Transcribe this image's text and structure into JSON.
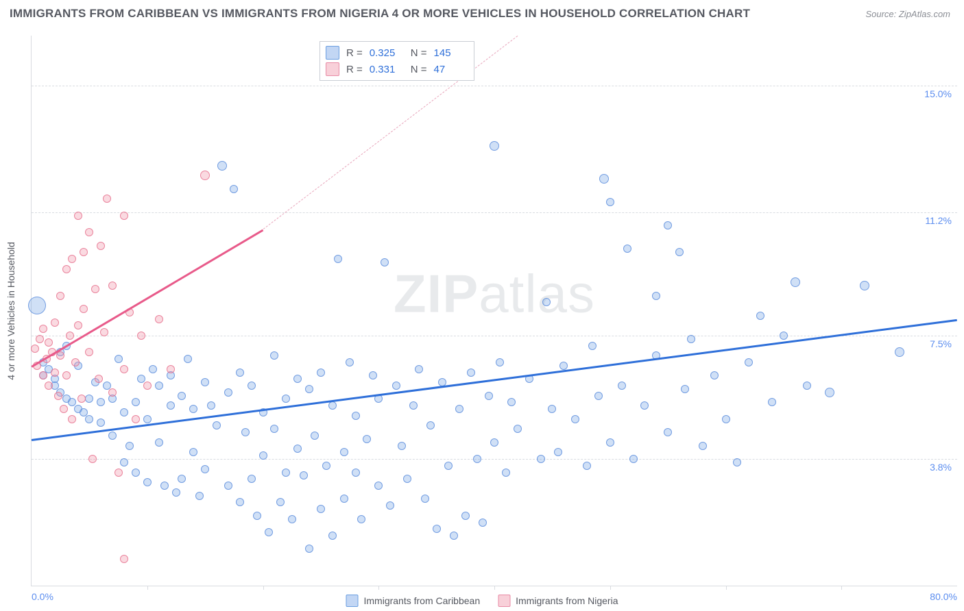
{
  "title": "IMMIGRANTS FROM CARIBBEAN VS IMMIGRANTS FROM NIGERIA 4 OR MORE VEHICLES IN HOUSEHOLD CORRELATION CHART",
  "source": "Source: ZipAtlas.com",
  "watermark": "ZIPatlas",
  "chart": {
    "type": "scatter",
    "background_color": "#ffffff",
    "grid_color": "#d8dbe0",
    "x_min": 0,
    "x_max": 80,
    "y_min": 0,
    "y_max": 16.5,
    "x_start_label": "0.0%",
    "x_end_label": "80.0%",
    "y_axis_label": "4 or more Vehicles in Household",
    "y_ticks": [
      {
        "v": 3.8,
        "label": "3.8%"
      },
      {
        "v": 7.5,
        "label": "7.5%"
      },
      {
        "v": 11.2,
        "label": "11.2%"
      },
      {
        "v": 15.0,
        "label": "15.0%"
      }
    ],
    "x_tick_positions": [
      0.125,
      0.25,
      0.375,
      0.5,
      0.625,
      0.75,
      0.875
    ],
    "series": [
      {
        "name": "Immigrants from Caribbean",
        "color_fill": "rgba(120,165,230,0.35)",
        "color_stroke": "#6a9de0",
        "marker_size_base": 14,
        "stats": {
          "R": "0.325",
          "N": "145"
        },
        "trend": {
          "x1": 0,
          "y1": 4.4,
          "x2": 80,
          "y2": 8.0,
          "color": "#2e6fd9"
        },
        "points": [
          [
            0.5,
            8.4,
            26
          ],
          [
            1,
            6.7,
            12
          ],
          [
            1,
            6.3,
            12
          ],
          [
            1.5,
            6.5,
            12
          ],
          [
            2,
            6.2,
            12
          ],
          [
            2,
            6.0,
            12
          ],
          [
            2.5,
            5.8,
            12
          ],
          [
            2.5,
            7.0,
            12
          ],
          [
            3,
            5.6,
            12
          ],
          [
            3,
            7.2,
            12
          ],
          [
            3.5,
            5.5,
            12
          ],
          [
            4,
            5.3,
            12
          ],
          [
            4,
            6.6,
            12
          ],
          [
            4.5,
            5.2,
            12
          ],
          [
            5,
            5.0,
            12
          ],
          [
            5,
            5.6,
            12
          ],
          [
            5.5,
            6.1,
            12
          ],
          [
            6,
            5.5,
            12
          ],
          [
            6,
            4.9,
            12
          ],
          [
            6.5,
            6.0,
            12
          ],
          [
            7,
            5.6,
            12
          ],
          [
            7,
            4.5,
            12
          ],
          [
            7.5,
            6.8,
            12
          ],
          [
            8,
            5.2,
            12
          ],
          [
            8,
            3.7,
            12
          ],
          [
            8.5,
            4.2,
            12
          ],
          [
            9,
            5.5,
            12
          ],
          [
            9,
            3.4,
            12
          ],
          [
            9.5,
            6.2,
            12
          ],
          [
            10,
            5.0,
            12
          ],
          [
            10,
            3.1,
            12
          ],
          [
            10.5,
            6.5,
            12
          ],
          [
            11,
            6.0,
            12
          ],
          [
            11,
            4.3,
            12
          ],
          [
            11.5,
            3.0,
            12
          ],
          [
            12,
            5.4,
            12
          ],
          [
            12,
            6.3,
            12
          ],
          [
            12.5,
            2.8,
            12
          ],
          [
            13,
            5.7,
            12
          ],
          [
            13,
            3.2,
            12
          ],
          [
            13.5,
            6.8,
            12
          ],
          [
            14,
            4.0,
            12
          ],
          [
            14,
            5.3,
            12
          ],
          [
            14.5,
            2.7,
            12
          ],
          [
            15,
            6.1,
            12
          ],
          [
            15,
            3.5,
            12
          ],
          [
            15.5,
            5.4,
            12
          ],
          [
            16,
            4.8,
            12
          ],
          [
            16.5,
            12.6,
            14
          ],
          [
            17,
            5.8,
            12
          ],
          [
            17,
            3.0,
            12
          ],
          [
            17.5,
            11.9,
            12
          ],
          [
            18,
            2.5,
            12
          ],
          [
            18,
            6.4,
            12
          ],
          [
            18.5,
            4.6,
            12
          ],
          [
            19,
            3.2,
            12
          ],
          [
            19,
            6.0,
            12
          ],
          [
            19.5,
            2.1,
            12
          ],
          [
            20,
            5.2,
            12
          ],
          [
            20,
            3.9,
            12
          ],
          [
            20.5,
            1.6,
            12
          ],
          [
            21,
            4.7,
            12
          ],
          [
            21,
            6.9,
            12
          ],
          [
            21.5,
            2.5,
            12
          ],
          [
            22,
            5.6,
            12
          ],
          [
            22,
            3.4,
            12
          ],
          [
            22.5,
            2.0,
            12
          ],
          [
            23,
            6.2,
            12
          ],
          [
            23,
            4.1,
            12
          ],
          [
            23.5,
            3.3,
            12
          ],
          [
            24,
            1.1,
            12
          ],
          [
            24,
            5.9,
            12
          ],
          [
            24.5,
            4.5,
            12
          ],
          [
            25,
            2.3,
            12
          ],
          [
            25,
            6.4,
            12
          ],
          [
            25.5,
            3.6,
            12
          ],
          [
            26,
            1.5,
            12
          ],
          [
            26,
            5.4,
            12
          ],
          [
            26.5,
            9.8,
            12
          ],
          [
            27,
            4.0,
            12
          ],
          [
            27,
            2.6,
            12
          ],
          [
            27.5,
            6.7,
            12
          ],
          [
            28,
            3.4,
            12
          ],
          [
            28,
            5.1,
            12
          ],
          [
            28.5,
            2.0,
            12
          ],
          [
            29,
            4.4,
            12
          ],
          [
            29.5,
            6.3,
            12
          ],
          [
            30,
            3.0,
            12
          ],
          [
            30,
            5.6,
            12
          ],
          [
            30.5,
            9.7,
            12
          ],
          [
            31,
            2.4,
            12
          ],
          [
            31.5,
            6.0,
            12
          ],
          [
            32,
            4.2,
            12
          ],
          [
            32.5,
            3.2,
            12
          ],
          [
            33,
            5.4,
            12
          ],
          [
            33.5,
            6.5,
            12
          ],
          [
            34,
            2.6,
            12
          ],
          [
            34.5,
            4.8,
            12
          ],
          [
            35,
            1.7,
            12
          ],
          [
            35.5,
            6.1,
            12
          ],
          [
            36,
            3.6,
            12
          ],
          [
            36.5,
            1.5,
            12
          ],
          [
            37,
            5.3,
            12
          ],
          [
            37.5,
            2.1,
            12
          ],
          [
            38,
            6.4,
            12
          ],
          [
            38.5,
            3.8,
            12
          ],
          [
            39,
            1.9,
            12
          ],
          [
            39.5,
            5.7,
            12
          ],
          [
            40,
            4.3,
            12
          ],
          [
            40,
            13.2,
            14
          ],
          [
            40.5,
            6.7,
            12
          ],
          [
            41,
            3.4,
            12
          ],
          [
            41.5,
            5.5,
            12
          ],
          [
            42,
            4.7,
            12
          ],
          [
            43,
            6.2,
            12
          ],
          [
            44,
            3.8,
            12
          ],
          [
            44.5,
            8.5,
            12
          ],
          [
            45,
            5.3,
            12
          ],
          [
            45.5,
            4.0,
            12
          ],
          [
            46,
            6.6,
            12
          ],
          [
            47,
            5.0,
            12
          ],
          [
            48,
            3.6,
            12
          ],
          [
            48.5,
            7.2,
            12
          ],
          [
            49,
            5.7,
            12
          ],
          [
            49.5,
            12.2,
            14
          ],
          [
            50,
            4.3,
            12
          ],
          [
            50,
            11.5,
            12
          ],
          [
            51,
            6.0,
            12
          ],
          [
            51.5,
            10.1,
            12
          ],
          [
            52,
            3.8,
            12
          ],
          [
            53,
            5.4,
            12
          ],
          [
            54,
            6.9,
            12
          ],
          [
            54,
            8.7,
            12
          ],
          [
            55,
            4.6,
            12
          ],
          [
            55,
            10.8,
            12
          ],
          [
            56,
            10.0,
            12
          ],
          [
            56.5,
            5.9,
            12
          ],
          [
            57,
            7.4,
            12
          ],
          [
            58,
            4.2,
            12
          ],
          [
            59,
            6.3,
            12
          ],
          [
            60,
            5.0,
            12
          ],
          [
            61,
            3.7,
            12
          ],
          [
            62,
            6.7,
            12
          ],
          [
            63,
            8.1,
            12
          ],
          [
            64,
            5.5,
            12
          ],
          [
            65,
            7.5,
            12
          ],
          [
            66,
            9.1,
            14
          ],
          [
            67,
            6.0,
            12
          ],
          [
            69,
            5.8,
            14
          ],
          [
            72,
            9.0,
            14
          ],
          [
            75,
            7.0,
            14
          ]
        ]
      },
      {
        "name": "Immigrants from Nigeria",
        "color_fill": "rgba(240,150,170,0.35)",
        "color_stroke": "#e88aa5",
        "marker_size_base": 14,
        "stats": {
          "R": "0.331",
          "N": "47"
        },
        "trend_solid": {
          "x1": 0,
          "y1": 6.6,
          "x2": 20,
          "y2": 10.7,
          "color": "#e85a8a"
        },
        "trend_dash": {
          "x1": 20,
          "y1": 10.7,
          "x2": 42,
          "y2": 16.5,
          "color": "#e8a5bb"
        },
        "points": [
          [
            0.3,
            7.1,
            12
          ],
          [
            0.5,
            6.6,
            12
          ],
          [
            0.7,
            7.4,
            12
          ],
          [
            1,
            6.3,
            12
          ],
          [
            1,
            7.7,
            12
          ],
          [
            1.3,
            6.8,
            12
          ],
          [
            1.5,
            6.0,
            12
          ],
          [
            1.5,
            7.3,
            12
          ],
          [
            1.8,
            7.0,
            12
          ],
          [
            2,
            6.4,
            12
          ],
          [
            2,
            7.9,
            12
          ],
          [
            2.3,
            5.7,
            12
          ],
          [
            2.5,
            8.7,
            12
          ],
          [
            2.5,
            6.9,
            12
          ],
          [
            2.8,
            5.3,
            12
          ],
          [
            3,
            9.5,
            12
          ],
          [
            3,
            6.3,
            12
          ],
          [
            3.3,
            7.5,
            12
          ],
          [
            3.5,
            5.0,
            12
          ],
          [
            3.5,
            9.8,
            12
          ],
          [
            3.8,
            6.7,
            12
          ],
          [
            4,
            11.1,
            12
          ],
          [
            4,
            7.8,
            12
          ],
          [
            4.3,
            5.6,
            12
          ],
          [
            4.5,
            8.3,
            12
          ],
          [
            4.5,
            10.0,
            12
          ],
          [
            5,
            10.6,
            12
          ],
          [
            5,
            7.0,
            12
          ],
          [
            5.3,
            3.8,
            12
          ],
          [
            5.5,
            8.9,
            12
          ],
          [
            5.8,
            6.2,
            12
          ],
          [
            6,
            10.2,
            12
          ],
          [
            6.3,
            7.6,
            12
          ],
          [
            6.5,
            11.6,
            12
          ],
          [
            7,
            5.8,
            12
          ],
          [
            7,
            9.0,
            12
          ],
          [
            7.5,
            3.4,
            12
          ],
          [
            8,
            11.1,
            12
          ],
          [
            8,
            6.5,
            12
          ],
          [
            8.5,
            8.2,
            12
          ],
          [
            9,
            5.0,
            12
          ],
          [
            9.5,
            7.5,
            12
          ],
          [
            10,
            6.0,
            12
          ],
          [
            11,
            8.0,
            12
          ],
          [
            12,
            6.5,
            12
          ],
          [
            8,
            0.8,
            12
          ],
          [
            15,
            12.3,
            14
          ]
        ]
      }
    ],
    "legend": {
      "series1_label": "Immigrants from Caribbean",
      "series2_label": "Immigrants from Nigeria"
    }
  }
}
